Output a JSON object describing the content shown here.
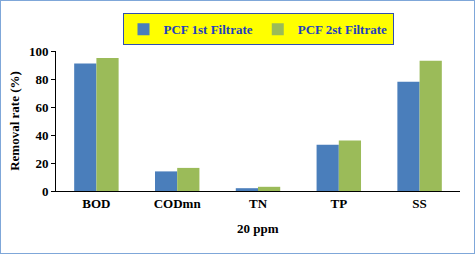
{
  "chart_data": {
    "type": "bar",
    "y_label": "Removal rate (%)",
    "categories": [
      "BOD",
      "CODmn",
      "TN",
      "TP",
      "SS"
    ],
    "series": [
      {
        "name": "PCF 1st Filtrate",
        "color": "#4a7ebb",
        "values": [
          91,
          14,
          2,
          33,
          78
        ]
      },
      {
        "name": "PCF 2st Filtrate",
        "color": "#9bbb59",
        "values": [
          95,
          16.5,
          3,
          36,
          93
        ]
      }
    ],
    "annotations": [
      {
        "text": "20 ppm",
        "category": "TN"
      }
    ],
    "ylim": [
      0,
      100
    ],
    "yticks": [
      0,
      20,
      40,
      60,
      80,
      100
    ],
    "grid": false,
    "legend": "top"
  }
}
